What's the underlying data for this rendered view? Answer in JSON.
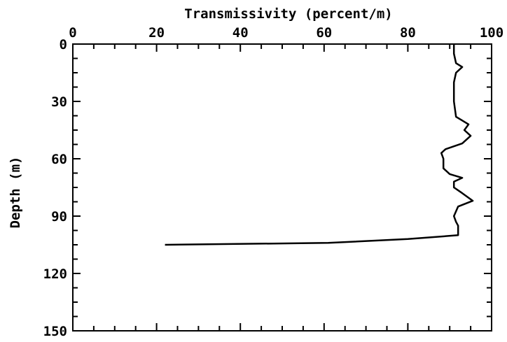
{
  "chart_data": {
    "type": "line",
    "title": "",
    "xlabel": "Transmissivity (percent/m)",
    "ylabel": "Depth (m)",
    "xlim": [
      0,
      100
    ],
    "ylim": [
      0,
      150
    ],
    "y_inverted": true,
    "x_axis_position": "top",
    "grid": false,
    "x_ticks": [
      "0",
      "20",
      "40",
      "60",
      "80",
      "100"
    ],
    "y_ticks": [
      "0",
      "30",
      "60",
      "90",
      "120",
      "150"
    ],
    "series": [
      {
        "name": "",
        "points": [
          [
            91,
            0
          ],
          [
            91,
            5
          ],
          [
            91.5,
            10
          ],
          [
            93,
            12
          ],
          [
            91.5,
            15
          ],
          [
            91,
            20
          ],
          [
            91,
            30
          ],
          [
            91.5,
            38
          ],
          [
            93,
            40
          ],
          [
            94.5,
            42
          ],
          [
            93.5,
            45
          ],
          [
            95,
            48
          ],
          [
            93,
            52
          ],
          [
            89,
            55
          ],
          [
            88,
            57
          ],
          [
            88.5,
            60
          ],
          [
            88.5,
            65
          ],
          [
            90,
            68
          ],
          [
            93,
            70
          ],
          [
            91,
            72
          ],
          [
            91,
            75
          ],
          [
            93,
            78
          ],
          [
            95.5,
            82
          ],
          [
            92,
            85
          ],
          [
            91,
            90
          ],
          [
            91.5,
            93
          ],
          [
            92,
            95
          ],
          [
            92,
            100
          ],
          [
            80,
            102
          ],
          [
            61,
            104
          ],
          [
            22,
            105
          ]
        ]
      }
    ]
  }
}
